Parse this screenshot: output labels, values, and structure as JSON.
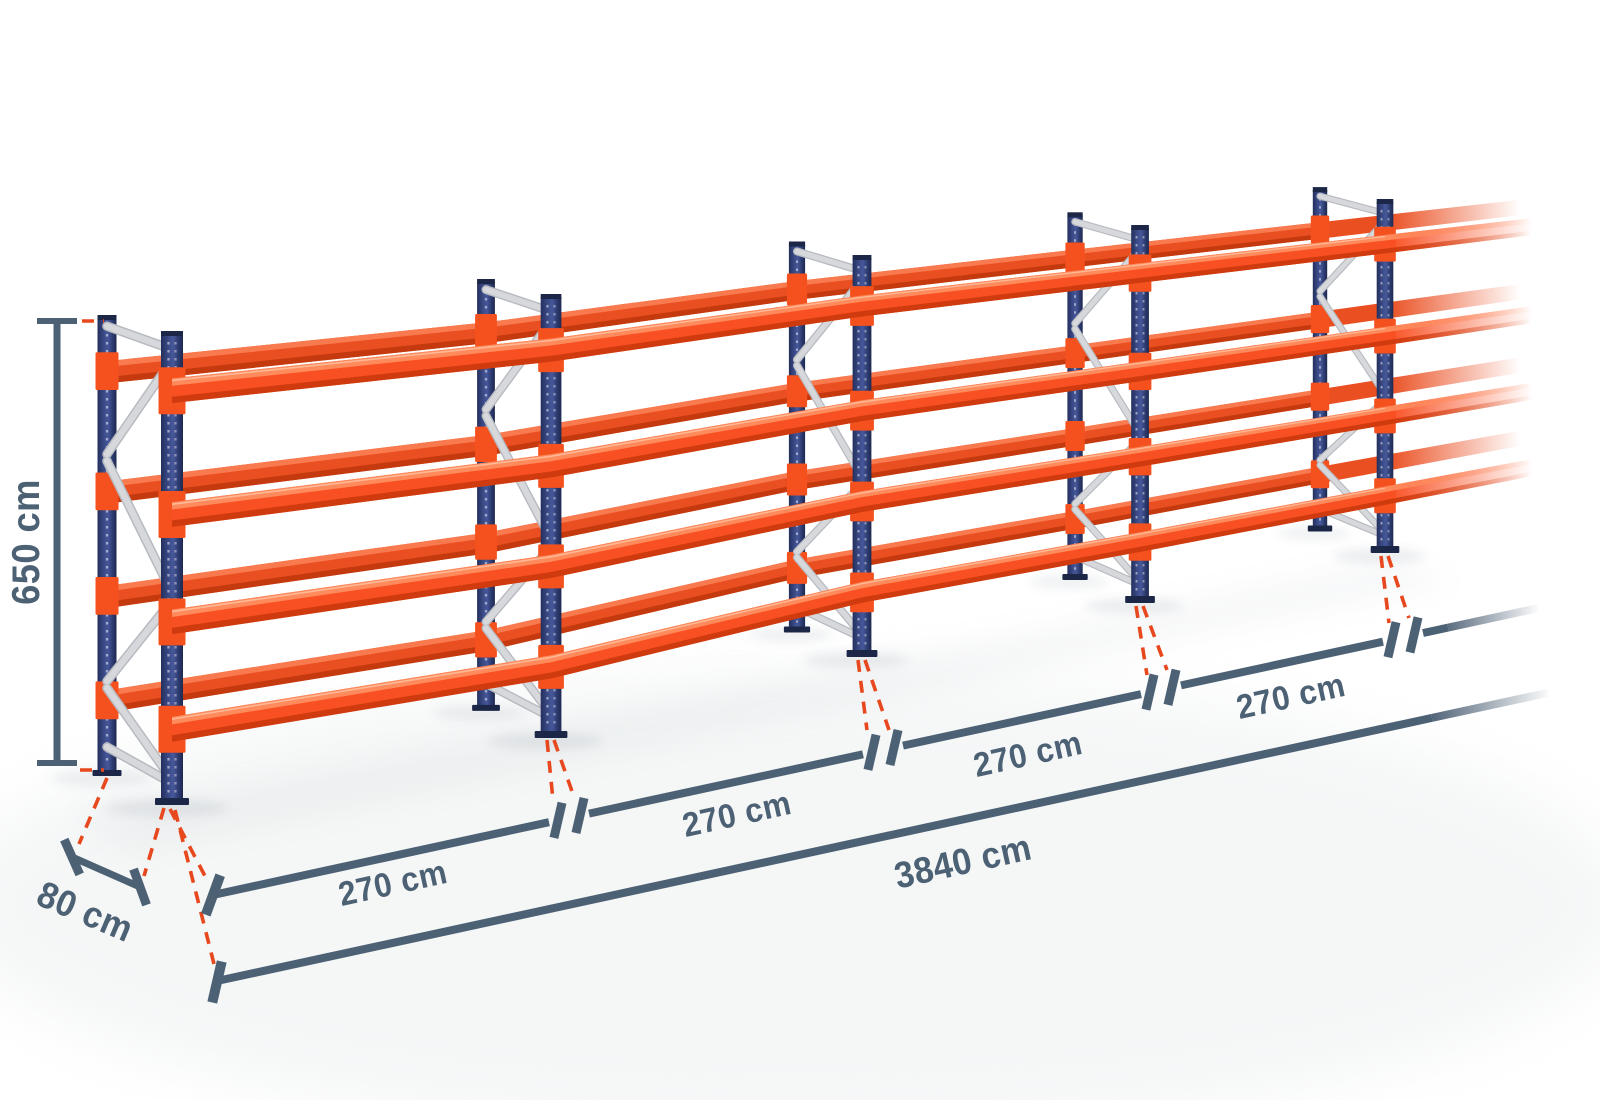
{
  "illustration": {
    "subject": "pallet-racking-row",
    "frames_visible": 5,
    "beam_levels": 4,
    "bays_dimensioned": 4
  },
  "dimensions": {
    "height": "650 cm",
    "depth": "80 cm",
    "bay_widths": [
      "270 cm",
      "270 cm",
      "270 cm",
      "270 cm"
    ],
    "total_length": "3840 cm"
  },
  "colors": {
    "beam_orange": "#f95023",
    "beam_orange_light": "#ff8a5c",
    "beam_orange_dark": "#cf3b0e",
    "beam_back_orange": "#ea4f22",
    "beam_back_dark": "#c43a0e",
    "beam_back_light": "#f97a4e",
    "connector_orange": "#f4511e",
    "upright_blue": "#2f3f74",
    "upright_blue_dark": "#1c2748",
    "brace_silver": "#d6d8db",
    "brace_silver_dark": "#b7bac0",
    "dimension_slate": "#4d6175",
    "extension_line_red": "#e8481d",
    "background": "#ffffff"
  }
}
